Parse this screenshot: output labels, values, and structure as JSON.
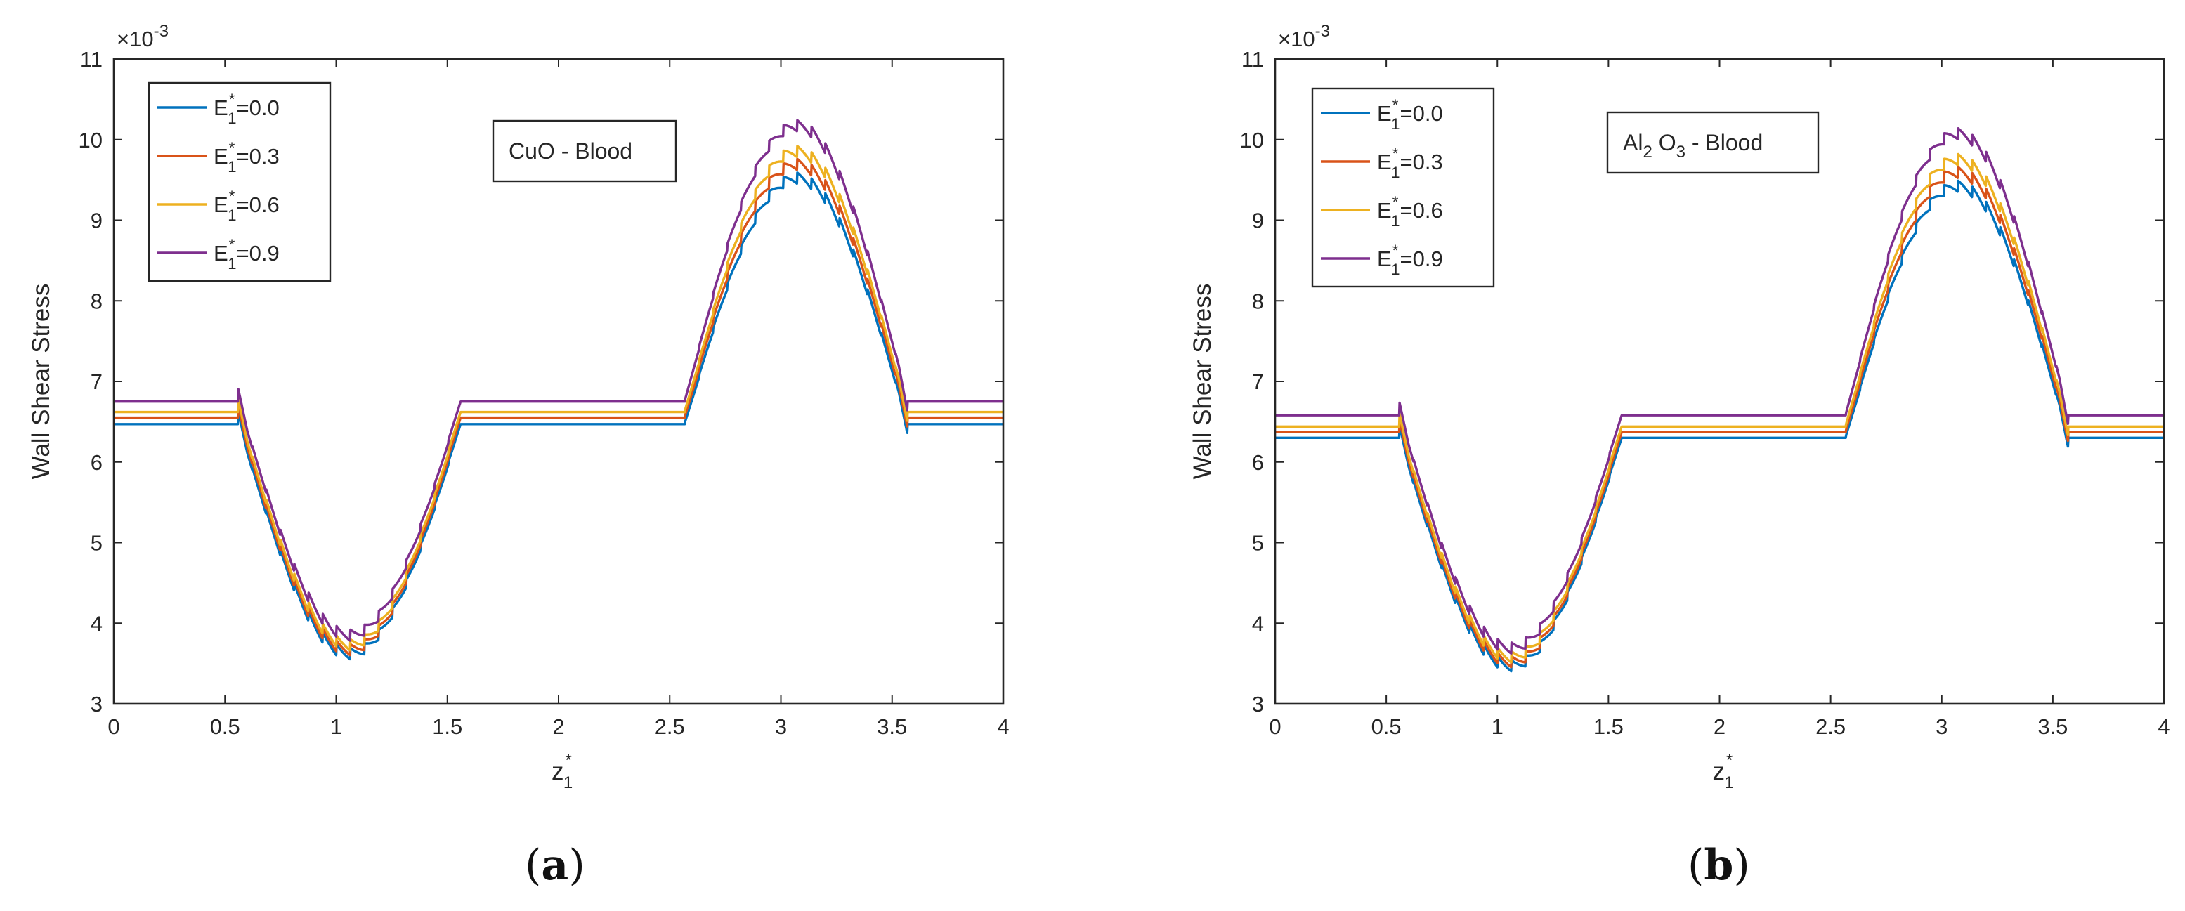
{
  "figure": {
    "panels": [
      "(a)",
      "(b)"
    ]
  },
  "chart_data": [
    {
      "type": "line",
      "panel_label": "(a)",
      "subfigure_letter": "a",
      "annotation": {
        "main": "CuO - Blood",
        "parts": [
          {
            "t": "CuO - Blood"
          }
        ]
      },
      "ylabel": "Wall Shear Stress",
      "xlabel": {
        "base": "z",
        "sup": "*",
        "sub": "1"
      },
      "y_multiplier": {
        "base": "×10",
        "exp": "-3"
      },
      "xlim": [
        0,
        4
      ],
      "ylim": [
        3,
        11
      ],
      "xticks": [
        "0",
        "0.5",
        "1",
        "1.5",
        "2",
        "2.5",
        "3",
        "3.5",
        "4"
      ],
      "yticks": [
        "3",
        "4",
        "5",
        "6",
        "7",
        "8",
        "9",
        "10",
        "11"
      ],
      "legend_position": "top-left",
      "flat_level": [
        6.47,
        6.55,
        6.62,
        6.75
      ],
      "trough_min": [
        3.55,
        3.6,
        3.66,
        3.78
      ],
      "peak_max": [
        9.45,
        9.62,
        9.78,
        10.1
      ],
      "series": [
        {
          "name": "E1*=0.0",
          "label": {
            "base": "E",
            "sup": "*",
            "sub": "1",
            "val": "=0.0"
          },
          "color": "#0072BD"
        },
        {
          "name": "E1*=0.3",
          "label": {
            "base": "E",
            "sup": "*",
            "sub": "1",
            "val": "=0.3"
          },
          "color": "#D95319"
        },
        {
          "name": "E1*=0.6",
          "label": {
            "base": "E",
            "sup": "*",
            "sub": "1",
            "val": "=0.6"
          },
          "color": "#EDB120"
        },
        {
          "name": "E1*=0.9",
          "label": {
            "base": "E",
            "sup": "*",
            "sub": "1",
            "val": "=0.9"
          },
          "color": "#7E2F8E"
        }
      ]
    },
    {
      "type": "line",
      "panel_label": "(b)",
      "subfigure_letter": "b",
      "annotation": {
        "main": "Al2 O3 - Blood",
        "parts": [
          {
            "t": "Al"
          },
          {
            "t": "2",
            "sub": true
          },
          {
            "t": " O"
          },
          {
            "t": "3",
            "sub": true
          },
          {
            "t": " - Blood"
          }
        ]
      },
      "ylabel": "Wall Shear Stress",
      "xlabel": {
        "base": "z",
        "sup": "*",
        "sub": "1"
      },
      "y_multiplier": {
        "base": "×10",
        "exp": "-3"
      },
      "xlim": [
        0,
        4
      ],
      "ylim": [
        3,
        11
      ],
      "xticks": [
        "0",
        "0.5",
        "1",
        "1.5",
        "2",
        "2.5",
        "3",
        "3.5",
        "4"
      ],
      "yticks": [
        "3",
        "4",
        "5",
        "6",
        "7",
        "8",
        "9",
        "10",
        "11"
      ],
      "legend_position": "top-left",
      "flat_level": [
        6.3,
        6.37,
        6.44,
        6.58
      ],
      "trough_min": [
        3.4,
        3.45,
        3.51,
        3.62
      ],
      "peak_max": [
        9.35,
        9.52,
        9.68,
        10.0
      ],
      "series": [
        {
          "name": "E1*=0.0",
          "label": {
            "base": "E",
            "sup": "*",
            "sub": "1",
            "val": "=0.0"
          },
          "color": "#0072BD"
        },
        {
          "name": "E1*=0.3",
          "label": {
            "base": "E",
            "sup": "*",
            "sub": "1",
            "val": "=0.3"
          },
          "color": "#D95319"
        },
        {
          "name": "E1*=0.6",
          "label": {
            "base": "E",
            "sup": "*",
            "sub": "1",
            "val": "=0.6"
          },
          "color": "#EDB120"
        },
        {
          "name": "E1*=0.9",
          "label": {
            "base": "E",
            "sup": "*",
            "sub": "1",
            "val": "=0.9"
          },
          "color": "#7E2F8E"
        }
      ]
    }
  ]
}
